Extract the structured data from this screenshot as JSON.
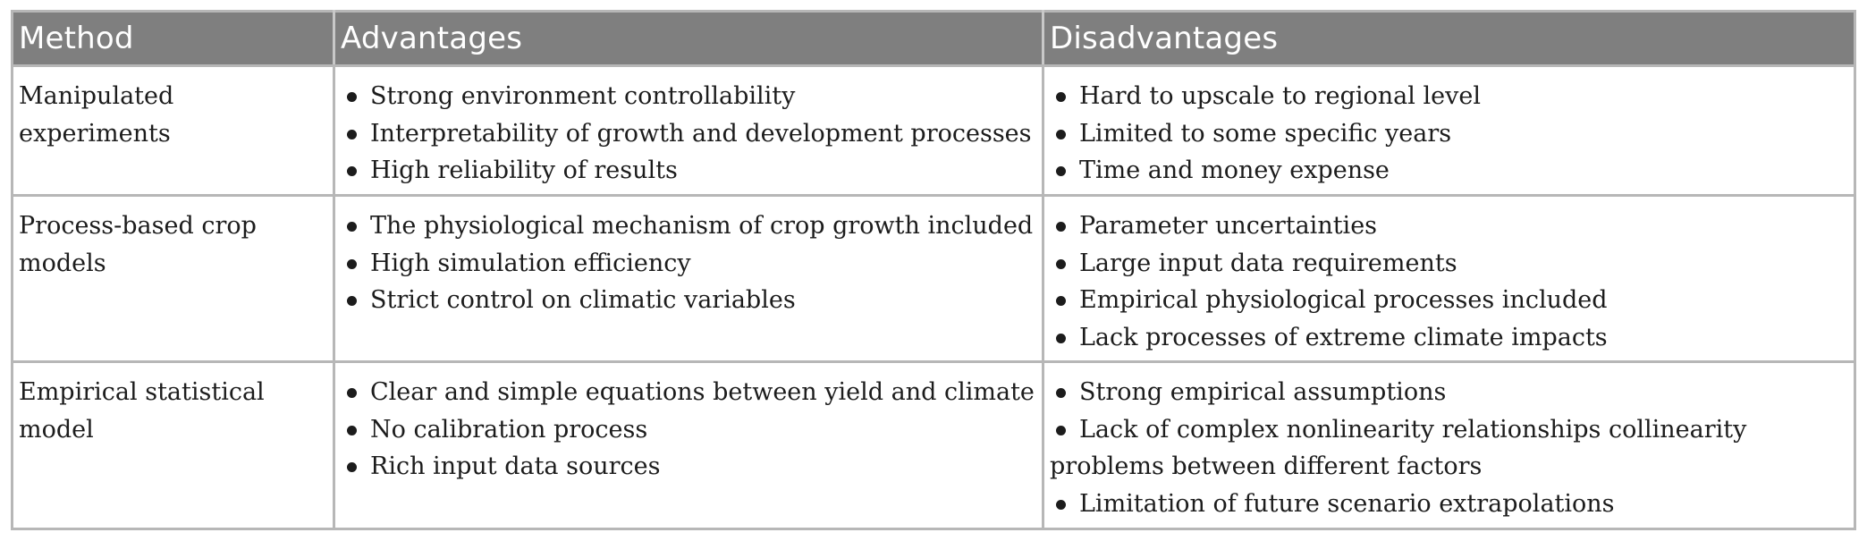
{
  "headers": {
    "method": "Method",
    "advantages": "Advantages",
    "disadvantages": "Disadvantages"
  },
  "rows": [
    {
      "method": "Manipulated experiments",
      "advantages": [
        "Strong environment controllability",
        "Interpretability of growth and development processes",
        "High reliability of results"
      ],
      "disadvantages": [
        "Hard to upscale to regional level",
        "Limited to some specific years",
        "Time and money expense"
      ]
    },
    {
      "method": "Process-based crop models",
      "advantages": [
        "The physiological mechanism of crop growth included",
        "High simulation efficiency",
        "Strict control on climatic variables"
      ],
      "disadvantages": [
        "Parameter uncertainties",
        "Large input data requirements",
        "Empirical physiological processes included",
        "Lack processes of extreme climate impacts"
      ]
    },
    {
      "method": "Empirical statistical model",
      "advantages": [
        "Clear and simple equations between yield and climate",
        "No calibration process",
        "Rich input data sources"
      ],
      "disadvantages": [
        "Strong empirical assumptions",
        "Lack of complex nonlinearity relationships collinearity problems between different factors",
        "Limitation of future scenario extrapolations"
      ]
    }
  ]
}
